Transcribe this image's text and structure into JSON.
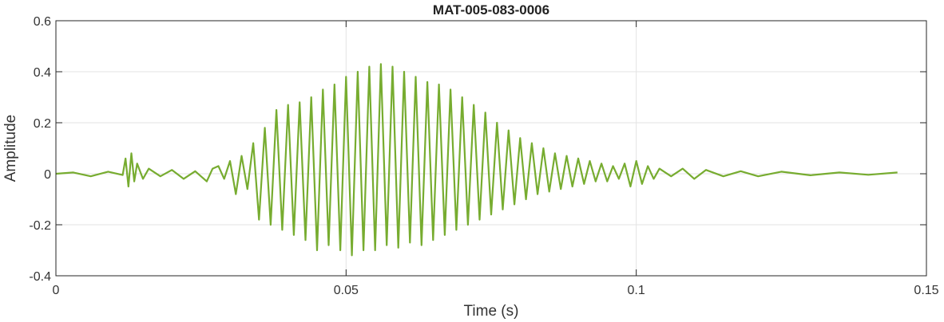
{
  "chart_data": {
    "type": "line",
    "title": "MAT-005-083-0006",
    "xlabel": "Time (s)",
    "ylabel": "Amplitude",
    "xlim": [
      0,
      0.15
    ],
    "ylim": [
      -0.4,
      0.6
    ],
    "xticks": [
      0,
      0.05,
      0.1,
      0.15
    ],
    "xtick_labels": [
      "0",
      "0.05",
      "0.1",
      "0.15"
    ],
    "yticks": [
      -0.4,
      -0.2,
      0,
      0.2,
      0.4,
      0.6
    ],
    "ytick_labels": [
      "-0.4",
      "-0.2",
      "0",
      "0.2",
      "0.4",
      "0.6"
    ],
    "grid": true,
    "line_color": "#77ac30",
    "series": [
      {
        "x": [
          0,
          0.003,
          0.006,
          0.009,
          0.0115,
          0.012,
          0.0125,
          0.013,
          0.0135,
          0.014,
          0.015,
          0.016,
          0.018,
          0.02,
          0.022,
          0.024,
          0.026,
          0.027,
          0.028,
          0.029,
          0.03,
          0.031,
          0.032,
          0.033,
          0.034,
          0.035,
          0.036,
          0.037,
          0.038,
          0.039,
          0.04,
          0.041,
          0.042,
          0.043,
          0.044,
          0.045,
          0.046,
          0.047,
          0.048,
          0.049,
          0.05,
          0.051,
          0.052,
          0.053,
          0.054,
          0.055,
          0.056,
          0.057,
          0.058,
          0.059,
          0.06,
          0.061,
          0.062,
          0.063,
          0.064,
          0.065,
          0.066,
          0.067,
          0.068,
          0.069,
          0.07,
          0.071,
          0.072,
          0.073,
          0.074,
          0.075,
          0.076,
          0.077,
          0.078,
          0.079,
          0.08,
          0.081,
          0.082,
          0.083,
          0.084,
          0.085,
          0.086,
          0.087,
          0.088,
          0.089,
          0.09,
          0.091,
          0.092,
          0.093,
          0.094,
          0.095,
          0.096,
          0.097,
          0.098,
          0.099,
          0.1,
          0.101,
          0.102,
          0.103,
          0.104,
          0.106,
          0.108,
          0.11,
          0.112,
          0.115,
          0.118,
          0.121,
          0.125,
          0.13,
          0.135,
          0.14,
          0.145
        ],
        "y": [
          0.0,
          0.005,
          -0.01,
          0.008,
          -0.005,
          0.06,
          -0.05,
          0.08,
          -0.03,
          0.04,
          -0.02,
          0.02,
          -0.01,
          0.015,
          -0.02,
          0.01,
          -0.03,
          0.02,
          0.03,
          -0.02,
          0.05,
          -0.08,
          0.07,
          -0.06,
          0.12,
          -0.18,
          0.18,
          -0.2,
          0.25,
          -0.22,
          0.27,
          -0.24,
          0.28,
          -0.26,
          0.3,
          -0.3,
          0.33,
          -0.28,
          0.35,
          -0.3,
          0.38,
          -0.32,
          0.4,
          -0.3,
          0.42,
          -0.3,
          0.43,
          -0.28,
          0.42,
          -0.29,
          0.4,
          -0.27,
          0.38,
          -0.28,
          0.36,
          -0.26,
          0.35,
          -0.24,
          0.33,
          -0.22,
          0.3,
          -0.2,
          0.27,
          -0.18,
          0.24,
          -0.16,
          0.2,
          -0.14,
          0.17,
          -0.12,
          0.14,
          -0.1,
          0.12,
          -0.08,
          0.1,
          -0.07,
          0.08,
          -0.06,
          0.07,
          -0.05,
          0.06,
          -0.04,
          0.05,
          -0.03,
          0.04,
          -0.03,
          0.03,
          -0.02,
          0.04,
          -0.05,
          0.05,
          -0.04,
          0.03,
          -0.02,
          0.02,
          -0.01,
          0.02,
          -0.02,
          0.015,
          -0.01,
          0.01,
          -0.01,
          0.008,
          -0.006,
          0.005,
          -0.004,
          0.005
        ]
      }
    ]
  }
}
